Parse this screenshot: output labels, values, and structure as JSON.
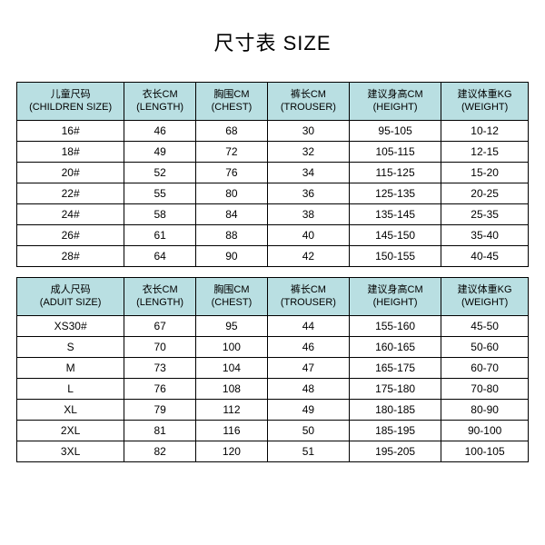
{
  "title": "尺寸表 SIZE",
  "colors": {
    "header_bg": "#b9dfe2",
    "border": "#000000",
    "background": "#ffffff",
    "text": "#000000"
  },
  "columns": {
    "children": {
      "size": {
        "cn": "儿童尺码",
        "en": "(CHILDREN SIZE)"
      },
      "length": {
        "cn": "衣长CM",
        "en": "(LENGTH)"
      },
      "chest": {
        "cn": "胸围CM",
        "en": "(CHEST)"
      },
      "trouser": {
        "cn": "裤长CM",
        "en": "(TROUSER)"
      },
      "height": {
        "cn": "建议身高CM",
        "en": "(HEIGHT)"
      },
      "weight": {
        "cn": "建议体重KG",
        "en": "(WEIGHT)"
      }
    },
    "adult": {
      "size": {
        "cn": "成人尺码",
        "en": "(ADUIT SIZE)"
      },
      "length": {
        "cn": "衣长CM",
        "en": "(LENGTH)"
      },
      "chest": {
        "cn": "胸围CM",
        "en": "(CHEST)"
      },
      "trouser": {
        "cn": "裤长CM",
        "en": "(TROUSER)"
      },
      "height": {
        "cn": "建议身高CM",
        "en": "(HEIGHT)"
      },
      "weight": {
        "cn": "建议体重KG",
        "en": "(WEIGHT)"
      }
    }
  },
  "children_rows": [
    {
      "size": "16#",
      "length": "46",
      "chest": "68",
      "trouser": "30",
      "height": "95-105",
      "weight": "10-12"
    },
    {
      "size": "18#",
      "length": "49",
      "chest": "72",
      "trouser": "32",
      "height": "105-115",
      "weight": "12-15"
    },
    {
      "size": "20#",
      "length": "52",
      "chest": "76",
      "trouser": "34",
      "height": "115-125",
      "weight": "15-20"
    },
    {
      "size": "22#",
      "length": "55",
      "chest": "80",
      "trouser": "36",
      "height": "125-135",
      "weight": "20-25"
    },
    {
      "size": "24#",
      "length": "58",
      "chest": "84",
      "trouser": "38",
      "height": "135-145",
      "weight": "25-35"
    },
    {
      "size": "26#",
      "length": "61",
      "chest": "88",
      "trouser": "40",
      "height": "145-150",
      "weight": "35-40"
    },
    {
      "size": "28#",
      "length": "64",
      "chest": "90",
      "trouser": "42",
      "height": "150-155",
      "weight": "40-45"
    }
  ],
  "adult_rows": [
    {
      "size": "XS30#",
      "length": "67",
      "chest": "95",
      "trouser": "44",
      "height": "155-160",
      "weight": "45-50"
    },
    {
      "size": "S",
      "length": "70",
      "chest": "100",
      "trouser": "46",
      "height": "160-165",
      "weight": "50-60"
    },
    {
      "size": "M",
      "length": "73",
      "chest": "104",
      "trouser": "47",
      "height": "165-175",
      "weight": "60-70"
    },
    {
      "size": "L",
      "length": "76",
      "chest": "108",
      "trouser": "48",
      "height": "175-180",
      "weight": "70-80"
    },
    {
      "size": "XL",
      "length": "79",
      "chest": "112",
      "trouser": "49",
      "height": "180-185",
      "weight": "80-90"
    },
    {
      "size": "2XL",
      "length": "81",
      "chest": "116",
      "trouser": "50",
      "height": "185-195",
      "weight": "90-100"
    },
    {
      "size": "3XL",
      "length": "82",
      "chest": "120",
      "trouser": "51",
      "height": "195-205",
      "weight": "100-105"
    }
  ]
}
